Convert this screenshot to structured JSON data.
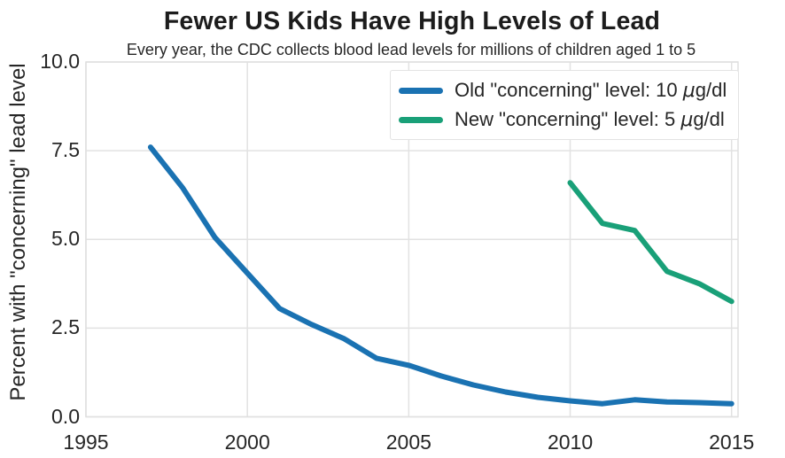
{
  "chart_data": {
    "type": "line",
    "title": "Fewer US Kids Have High Levels of Lead",
    "subtitle": "Every year, the CDC collects blood lead levels for millions of children aged 1 to 5",
    "xlabel": "",
    "ylabel": "Percent with \"concerning\" lead level",
    "xlim": [
      1995,
      2015.2
    ],
    "ylim": [
      0,
      10
    ],
    "grid": true,
    "grid_color": "#e2e2e2",
    "spine_color": "#e0e0e0",
    "background_color": "#ffffff",
    "text_color": "#262626",
    "legend_position": "upper right",
    "xticks": [
      {
        "value": 1995,
        "label": "1995"
      },
      {
        "value": 2000,
        "label": "2000"
      },
      {
        "value": 2005,
        "label": "2005"
      },
      {
        "value": 2010,
        "label": "2010"
      },
      {
        "value": 2015,
        "label": "2015"
      }
    ],
    "yticks": [
      {
        "value": 0,
        "label": "0.0"
      },
      {
        "value": 2.5,
        "label": "2.5"
      },
      {
        "value": 5,
        "label": "5.0"
      },
      {
        "value": 7.5,
        "label": "7.5"
      },
      {
        "value": 10,
        "label": "10.0"
      }
    ],
    "series": [
      {
        "name": "Old \"concerning\" level: 10 μg/dl",
        "color": "#1a72b2",
        "line_width": 6,
        "x": [
          1997,
          1998,
          1999,
          2000,
          2001,
          2002,
          2003,
          2004,
          2005,
          2006,
          2007,
          2008,
          2009,
          2010,
          2011,
          2012,
          2013,
          2014,
          2015
        ],
        "values": [
          7.6,
          6.45,
          5.05,
          4.05,
          3.05,
          2.6,
          2.2,
          1.65,
          1.45,
          1.15,
          0.9,
          0.7,
          0.55,
          0.45,
          0.37,
          0.48,
          0.42,
          0.4,
          0.37
        ]
      },
      {
        "name": "New \"concerning\" level: 5 μg/dl",
        "color": "#19a078",
        "line_width": 6,
        "x": [
          2010,
          2011,
          2012,
          2013,
          2014,
          2015
        ],
        "values": [
          6.6,
          5.45,
          5.25,
          4.1,
          3.75,
          3.25
        ]
      }
    ]
  }
}
